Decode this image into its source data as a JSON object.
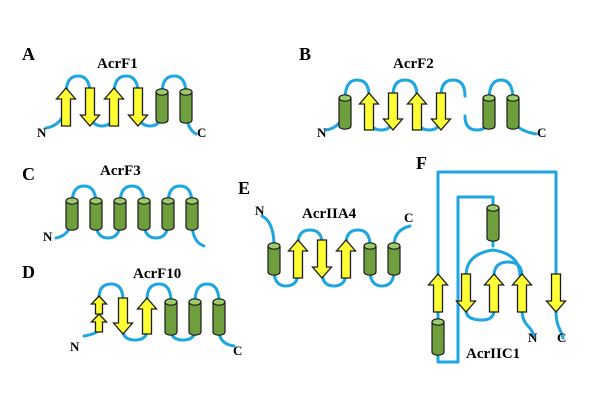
{
  "figure": {
    "panels": [
      {
        "letter": "A",
        "protein": "AcrF1",
        "n_label": "N",
        "c_label": "C",
        "elements": [
          "strand-up",
          "strand-down",
          "strand-up",
          "strand-down",
          "helix",
          "helix"
        ]
      },
      {
        "letter": "B",
        "protein": "AcrF2",
        "n_label": "N",
        "c_label": "C",
        "elements": [
          "helix",
          "strand-up",
          "strand-down",
          "strand-up",
          "strand-down",
          "helix",
          "helix"
        ]
      },
      {
        "letter": "C",
        "protein": "AcrF3",
        "n_label": "N",
        "elements": [
          "helix",
          "helix",
          "helix",
          "helix",
          "helix",
          "helix"
        ]
      },
      {
        "letter": "D",
        "protein": "AcrF10",
        "n_label": "N",
        "c_label": "C",
        "elements": [
          "strand-up-split",
          "strand-down",
          "strand-up",
          "helix",
          "helix",
          "helix"
        ]
      },
      {
        "letter": "E",
        "protein": "AcrIIA4",
        "n_label": "N",
        "c_label": "C",
        "elements": [
          "helix",
          "strand-up",
          "strand-down",
          "strand-up",
          "helix",
          "helix"
        ]
      },
      {
        "letter": "F",
        "protein": "AcrIIC1",
        "n_label": "N",
        "c_label": "C",
        "elements": [
          "helix",
          "strand-up",
          "helix",
          "strand-down",
          "strand-up",
          "strand-up",
          "strand-down"
        ]
      }
    ],
    "colors": {
      "loop": "#1fa6e0",
      "helix": "#6e9f3c",
      "strand": "#ffff33"
    }
  }
}
